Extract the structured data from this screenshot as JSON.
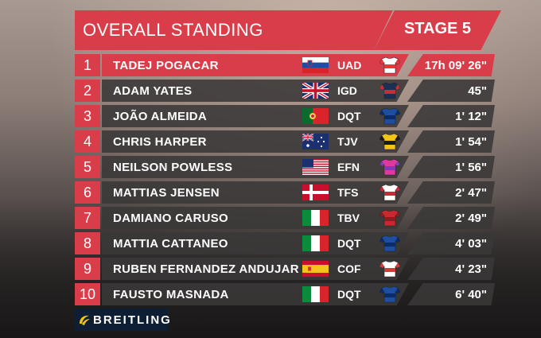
{
  "header": {
    "title": "OVERALL STANDING",
    "stage": "STAGE 5"
  },
  "standings": [
    {
      "rank": "1",
      "name": "TADEJ POGACAR",
      "country": "slovenia",
      "team": "UAD",
      "time": "17h 09' 26\"",
      "jersey": "uae-jersey",
      "jersey_colors": [
        "#ffffff",
        "#e23a3a"
      ]
    },
    {
      "rank": "2",
      "name": "ADAM YATES",
      "country": "uk",
      "team": "IGD",
      "time": "45\"",
      "jersey": "ineos-jersey",
      "jersey_colors": [
        "#1c2f55",
        "#c4302b"
      ]
    },
    {
      "rank": "3",
      "name": "JOÃO ALMEIDA",
      "country": "portugal",
      "team": "DQT",
      "time": "1' 12\"",
      "jersey": "quickstep-jersey",
      "jersey_colors": [
        "#1e4ea0",
        "#0b2c66"
      ]
    },
    {
      "rank": "4",
      "name": "CHRIS HARPER",
      "country": "australia",
      "team": "TJV",
      "time": "1' 54\"",
      "jersey": "jumbo-jersey",
      "jersey_colors": [
        "#f2c418",
        "#1a1a1a"
      ]
    },
    {
      "rank": "5",
      "name": "NEILSON POWLESS",
      "country": "usa",
      "team": "EFN",
      "time": "1' 56\"",
      "jersey": "ef-jersey",
      "jersey_colors": [
        "#e0389c",
        "#7a3fb5"
      ]
    },
    {
      "rank": "6",
      "name": "MATTIAS JENSEN",
      "country": "denmark",
      "team": "TFS",
      "time": "2' 47\"",
      "jersey": "trek-jersey",
      "jersey_colors": [
        "#ffffff",
        "#c72a3b"
      ]
    },
    {
      "rank": "7",
      "name": "DAMIANO CARUSO",
      "country": "italy",
      "team": "TBV",
      "time": "2' 49\"",
      "jersey": "bahrain-jersey",
      "jersey_colors": [
        "#c8282f",
        "#8a1d22"
      ]
    },
    {
      "rank": "8",
      "name": "MATTIA CATTANEO",
      "country": "italy",
      "team": "DQT",
      "time": "4' 03\"",
      "jersey": "quickstep-jersey",
      "jersey_colors": [
        "#1e4ea0",
        "#0b2c66"
      ]
    },
    {
      "rank": "9",
      "name": "RUBEN FERNANDEZ ANDUJAR",
      "country": "spain",
      "team": "COF",
      "time": "4' 23\"",
      "jersey": "cofidis-jersey",
      "jersey_colors": [
        "#ffffff",
        "#d33a3a"
      ]
    },
    {
      "rank": "10",
      "name": "FAUSTO MASNADA",
      "country": "italy",
      "team": "DQT",
      "time": "6' 40\"",
      "jersey": "quickstep-jersey",
      "jersey_colors": [
        "#1e4ea0",
        "#0b2c66"
      ]
    }
  ],
  "sponsor": {
    "label": "BREITLING",
    "icon": "breitling-logo-icon",
    "color": "#f2c418"
  },
  "colors": {
    "accent": "#d93d4a",
    "row_bg": "#3a3838"
  }
}
